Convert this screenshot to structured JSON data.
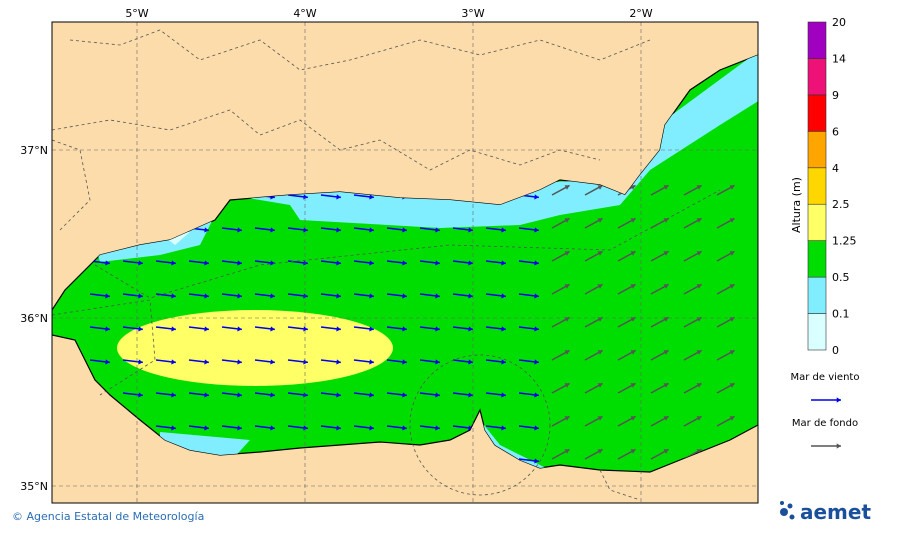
{
  "map": {
    "longitude_labels": [
      "5°W",
      "4°W",
      "3°W",
      "2°W"
    ],
    "latitude_labels": [
      "37°N",
      "36°N",
      "35°N"
    ]
  },
  "colorbar": {
    "title": "Altura (m)",
    "levels": [
      0,
      0.1,
      0.5,
      1.25,
      2.5,
      4,
      6,
      9,
      14,
      20
    ],
    "colors": [
      "#d9ffff",
      "#80eeff",
      "#00dd00",
      "#ffff66",
      "#ffd700",
      "#ffa500",
      "#ff0000",
      "#ee1177",
      "#a000c0"
    ]
  },
  "legend": [
    {
      "label": "Mar de viento",
      "color": "#0000ee"
    },
    {
      "label": "Mar de fondo",
      "color": "#555555"
    }
  ],
  "footer": {
    "credit": "© Agencia Estatal de Meteorología",
    "logo": "aemet"
  }
}
